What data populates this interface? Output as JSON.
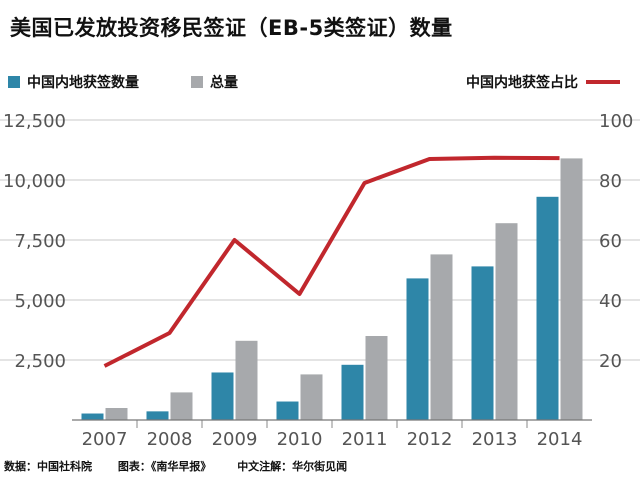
{
  "title": "美国已发放投资移民签证（EB-5类签证）数量",
  "legend": {
    "series1": "中国内地获签数量",
    "series2": "总量",
    "line": "中国内地获签占比"
  },
  "colors": {
    "series1": "#2e86a8",
    "series2": "#a7a9ac",
    "line": "#c1272d",
    "grid": "#c8c8c8"
  },
  "footer": {
    "source": "数据：中国社科院",
    "chart_by": "图表：《南华早报》",
    "note": "中文注解：华尔街见闻"
  },
  "chart_data": {
    "type": "bar",
    "title": "美国已发放投资移民签证（EB-5类签证）数量",
    "categories": [
      "2007",
      "2008",
      "2009",
      "2010",
      "2011",
      "2012",
      "2013",
      "2014"
    ],
    "series": [
      {
        "name": "中国内地获签数量",
        "values": [
          270,
          360,
          1980,
          770,
          2300,
          5900,
          6400,
          9300
        ]
      },
      {
        "name": "总量",
        "values": [
          500,
          1150,
          3300,
          1900,
          3500,
          6900,
          8200,
          10900
        ]
      }
    ],
    "line_series": {
      "name": "中国内地获签占比",
      "values": [
        18,
        29,
        60,
        42,
        79,
        87,
        87.4,
        87.3
      ]
    },
    "y_left": {
      "ylim": [
        0,
        12500
      ],
      "ticks": [
        2500,
        5000,
        7500,
        10000,
        12500
      ],
      "tick_labels": [
        "2,500",
        "5,000",
        "7,500",
        "10,000",
        "12,500"
      ]
    },
    "y_right": {
      "ylim": [
        0,
        100
      ],
      "ticks": [
        20,
        40,
        60,
        80,
        100
      ],
      "tick_labels": [
        "20",
        "40",
        "60",
        "80",
        "100"
      ]
    },
    "grid": true,
    "legend_position": "top"
  }
}
